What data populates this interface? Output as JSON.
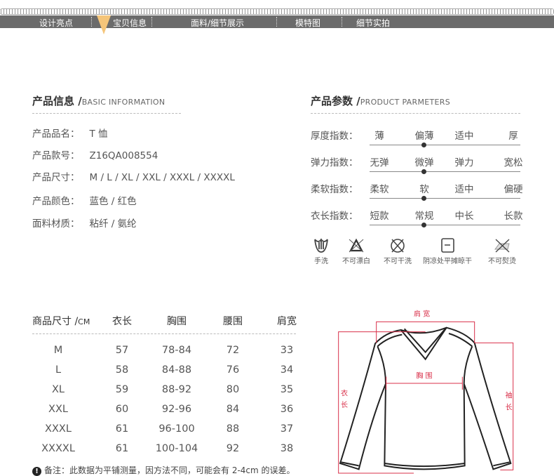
{
  "nav": {
    "items": [
      "设计亮点",
      "宝贝信息",
      "面料/细节展示",
      "模特图",
      "细节实拍"
    ],
    "active": "宝贝信息",
    "accent": "#f5c57a",
    "bar_color": "#6b6b6b"
  },
  "info": {
    "title": "产品信息 /",
    "subtitle": "BASIC INFORMATION",
    "rows": [
      {
        "label": "产品品名：",
        "value": "T 恤"
      },
      {
        "label": "产品款号：",
        "value": "Z16QA008554"
      },
      {
        "label": "产品尺寸：",
        "value": "M / L / XL / XXL / XXXL / XXXXL"
      },
      {
        "label": "产品颜色：",
        "value": "蓝色 / 红色"
      },
      {
        "label": "面料材质：",
        "value": "粘纤 / 氨纶"
      }
    ]
  },
  "params": {
    "title": "产品参数 /",
    "subtitle": "PRODUCT PARMETERS",
    "rows": [
      {
        "label": "厚度指数：",
        "options": [
          "薄",
          "偏薄",
          "适中",
          "厚"
        ],
        "selected": "偏薄"
      },
      {
        "label": "弹力指数：",
        "options": [
          "无弹",
          "微弹",
          "弹力",
          "宽松"
        ],
        "selected": "微弹"
      },
      {
        "label": "柔软指数：",
        "options": [
          "柔软",
          "软",
          "适中",
          "偏硬"
        ],
        "selected": "软"
      },
      {
        "label": "衣长指数：",
        "options": [
          "短款",
          "常规",
          "中长",
          "长款"
        ],
        "selected": "常规"
      }
    ]
  },
  "care": [
    {
      "icon": "hand-wash-icon",
      "label": "手洗"
    },
    {
      "icon": "no-bleach-icon",
      "label": "不可漂白"
    },
    {
      "icon": "no-dry-clean-icon",
      "label": "不可干洗"
    },
    {
      "icon": "flat-dry-shade-icon",
      "label": "阴凉处平摊晾干"
    },
    {
      "icon": "no-iron-icon",
      "label": "不可熨烫"
    }
  ],
  "sizes": {
    "header": [
      "商品尺寸 /",
      "CM",
      "衣长",
      "胸围",
      "腰围",
      "肩宽"
    ],
    "rows": [
      [
        "M",
        "57",
        "78-84",
        "72",
        "33"
      ],
      [
        "L",
        "58",
        "84-88",
        "76",
        "34"
      ],
      [
        "XL",
        "59",
        "88-92",
        "80",
        "35"
      ],
      [
        "XXL",
        "60",
        "92-96",
        "84",
        "36"
      ],
      [
        "XXXL",
        "61",
        "96-100",
        "88",
        "37"
      ],
      [
        "XXXXL",
        "61",
        "100-104",
        "92",
        "38"
      ]
    ],
    "note": "备注：此数据为平铺测量，因方法不同，可能会有 2-4cm 的误差。"
  },
  "diagram": {
    "labels": {
      "shoulder": "肩 宽",
      "chest": "胸 围",
      "length_1": "衣",
      "length_2": "长",
      "sleeve_1": "袖",
      "sleeve_2": "长"
    },
    "line_color": "#d9304a"
  }
}
